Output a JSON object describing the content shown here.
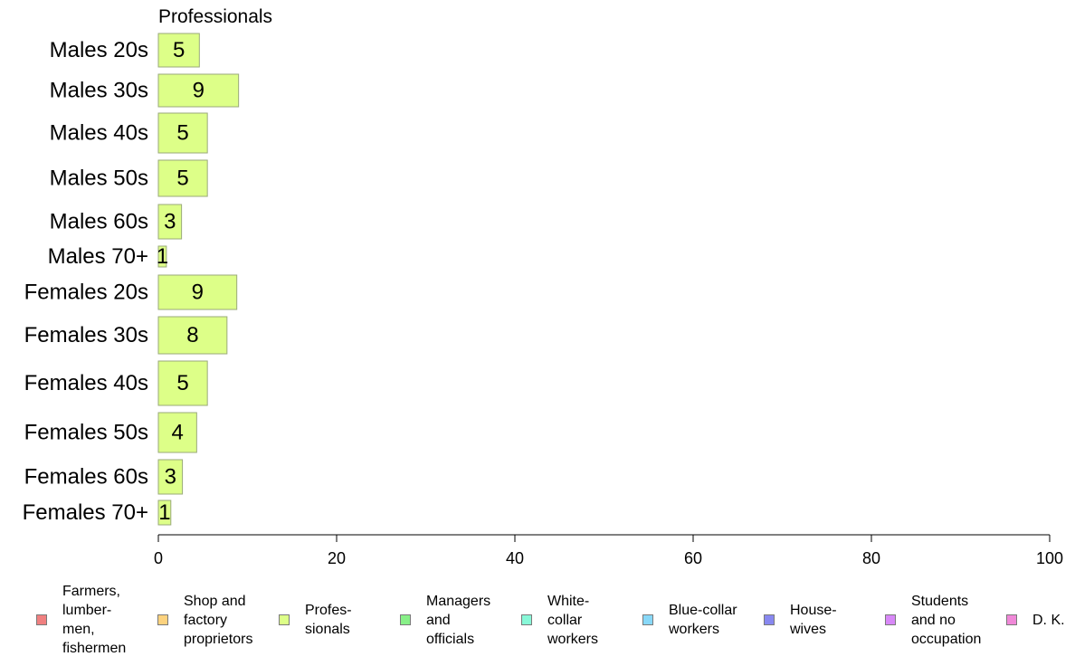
{
  "chart_data": {
    "type": "bar",
    "orientation": "horizontal",
    "title": "Professionals",
    "categories": [
      "Males 20s",
      "Males 30s",
      "Males 40s",
      "Males 50s",
      "Males 60s",
      "Males 70+",
      "Females 20s",
      "Females 30s",
      "Females 40s",
      "Females 50s",
      "Females 60s",
      "Females 70+"
    ],
    "values": [
      5,
      9,
      5,
      5,
      3,
      1,
      9,
      8,
      5,
      4,
      3,
      1
    ],
    "bar_lengths": [
      4.6,
      9.0,
      5.5,
      5.5,
      2.6,
      0.9,
      8.8,
      7.7,
      5.5,
      4.3,
      2.7,
      1.4
    ],
    "xlim": [
      0,
      100
    ],
    "xticks": [
      0,
      20,
      40,
      60,
      80,
      100
    ],
    "grid": false,
    "bar_color": "#ddff88",
    "bar_edge_color": "#9aaa7a",
    "legend_position": "bottom",
    "legend": [
      {
        "label": "Farmers,\nlumber-\nmen,\nfishermen",
        "color": "#f08080"
      },
      {
        "label": "Shop and\nfactory\nproprietors",
        "color": "#fcd27e"
      },
      {
        "label": "Profes-\nsionals",
        "color": "#ddff88"
      },
      {
        "label": "Managers\nand\nofficials",
        "color": "#88f088"
      },
      {
        "label": "White-\ncollar\nworkers",
        "color": "#88f8d8"
      },
      {
        "label": "Blue-collar\nworkers",
        "color": "#88d8f8"
      },
      {
        "label": "House-\nwives",
        "color": "#8888f0"
      },
      {
        "label": "Students\nand no\noccupation",
        "color": "#d888f8"
      },
      {
        "label": "D. K.",
        "color": "#f088d8"
      }
    ]
  }
}
